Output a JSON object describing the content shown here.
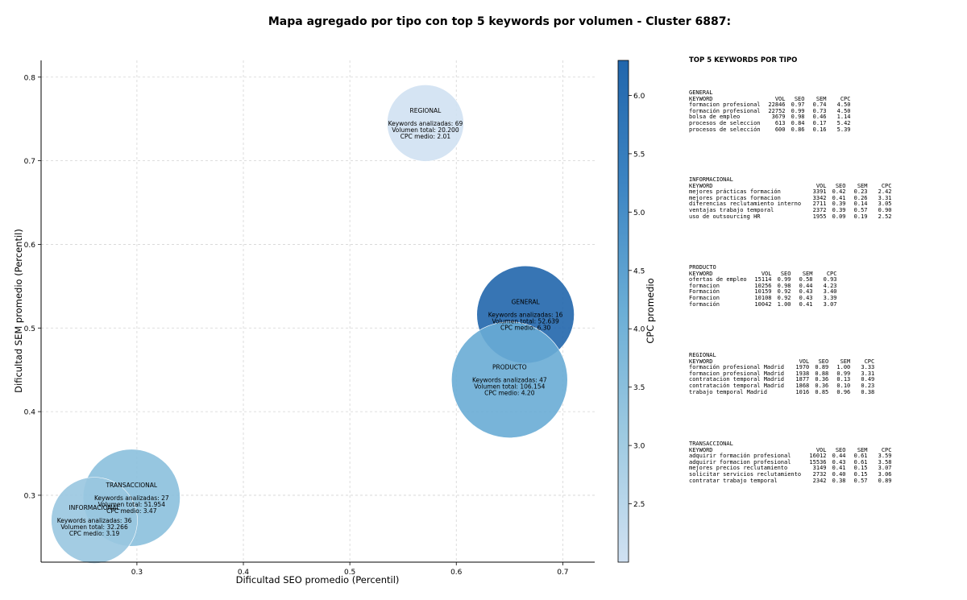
{
  "chart_data": {
    "type": "scatter",
    "title": "Mapa agregado por tipo con top 5 keywords por volumen - Cluster 6887:",
    "xlabel": "Dificultad SEO promedio (Percentil)",
    "ylabel": "Dificultad SEM promedio (Percentil)",
    "xlim": [
      0.21,
      0.73
    ],
    "ylim": [
      0.22,
      0.82
    ],
    "xticks": [
      "0.3",
      "0.4",
      "0.5",
      "0.6",
      "0.7"
    ],
    "yticks": [
      "0.3",
      "0.4",
      "0.5",
      "0.6",
      "0.7",
      "0.8"
    ],
    "grid": true,
    "colorbar": {
      "label": "CPC promedio",
      "min": 2.0,
      "max": 6.3,
      "ticks": [
        "2.5",
        "3.0",
        "3.5",
        "4.0",
        "4.5",
        "5.0",
        "5.5",
        "6.0"
      ],
      "colors": [
        "#d0e1f2",
        "#9ecae1",
        "#6baed6",
        "#3d85c3",
        "#2166ac"
      ]
    },
    "bubbles": [
      {
        "type": "REGIONAL",
        "x": 0.571,
        "y": 0.745,
        "keywords": "Keywords analizadas: 69",
        "volume": "Volumen total: 20.200",
        "cpc": "CPC medio: 2.01",
        "cpc_value": 2.01,
        "volume_value": 20200
      },
      {
        "type": "GENERAL",
        "x": 0.665,
        "y": 0.516,
        "keywords": "Keywords analizadas: 16",
        "volume": "Volumen total: 52.639",
        "cpc": "CPC medio: 6.30",
        "cpc_value": 6.3,
        "volume_value": 52639
      },
      {
        "type": "PRODUCTO",
        "x": 0.65,
        "y": 0.438,
        "keywords": "Keywords analizadas: 47",
        "volume": "Volumen total: 106.154",
        "cpc": "CPC medio: 4.20",
        "cpc_value": 4.2,
        "volume_value": 106154
      },
      {
        "type": "TRANSACCIONAL",
        "x": 0.295,
        "y": 0.297,
        "keywords": "Keywords analizadas: 27",
        "volume": "Volumen total: 51.954",
        "cpc": "CPC medio: 3.47",
        "cpc_value": 3.47,
        "volume_value": 51954
      },
      {
        "type": "INFORMACIONAL",
        "x": 0.26,
        "y": 0.27,
        "keywords": "Keywords analizadas: 36",
        "volume": "Volumen total: 32.266",
        "cpc": "CPC medio: 3.19",
        "cpc_value": 3.19,
        "volume_value": 32266
      }
    ]
  },
  "side_panel": {
    "title": "TOP 5 KEYWORDS POR TIPO",
    "header": {
      "keyword": "KEYWORD",
      "vol": "VOL",
      "seo": "SEO",
      "sem": "SEM",
      "cpc": "CPC"
    },
    "blocks": [
      {
        "name": "GENERAL",
        "rows": [
          [
            "formacion profesional",
            "22846",
            "0.97",
            "0.74",
            "4.50"
          ],
          [
            "formación profesional",
            "22752",
            "0.99",
            "0.73",
            "4.50"
          ],
          [
            "bolsa de empleo",
            "3679",
            "0.98",
            "0.46",
            "1.14"
          ],
          [
            "procesos de seleccion",
            "613",
            "0.84",
            "0.17",
            "5.42"
          ],
          [
            "procesos de selección",
            "600",
            "0.86",
            "0.16",
            "5.39"
          ]
        ]
      },
      {
        "name": "INFORMACIONAL",
        "rows": [
          [
            "mejores prácticas formación",
            "3391",
            "0.42",
            "0.23",
            "2.42"
          ],
          [
            "mejores practicas formacion",
            "3342",
            "0.41",
            "0.26",
            "3.31"
          ],
          [
            "diferencias reclutamiento interno",
            "2711",
            "0.39",
            "0.14",
            "3.05"
          ],
          [
            "ventajas trabajo temporal",
            "2372",
            "0.39",
            "0.57",
            "0.90"
          ],
          [
            "uso de outsourcing HR",
            "1955",
            "0.09",
            "0.19",
            "2.52"
          ]
        ]
      },
      {
        "name": "PRODUCTO",
        "rows": [
          [
            "ofertas de empleo",
            "15114",
            "0.99",
            "0.58",
            "0.93"
          ],
          [
            "formacion",
            "10256",
            "0.98",
            "0.44",
            "4.23"
          ],
          [
            "Formación",
            "10159",
            "0.92",
            "0.43",
            "3.40"
          ],
          [
            "Formacion",
            "10108",
            "0.92",
            "0.43",
            "3.39"
          ],
          [
            "formación",
            "10042",
            "1.00",
            "0.41",
            "3.07"
          ]
        ]
      },
      {
        "name": "REGIONAL",
        "rows": [
          [
            "formación profesional Madrid",
            "1970",
            "0.89",
            "1.00",
            "3.33"
          ],
          [
            "formacion profesional Madrid",
            "1938",
            "0.88",
            "0.99",
            "3.31"
          ],
          [
            "contratacion temporal Madrid",
            "1877",
            "0.36",
            "0.13",
            "0.49"
          ],
          [
            "contratación temporal Madrid",
            "1868",
            "0.36",
            "0.10",
            "0.23"
          ],
          [
            "trabajo temporal Madrid",
            "1016",
            "0.85",
            "0.96",
            "0.38"
          ]
        ]
      },
      {
        "name": "TRANSACCIONAL",
        "rows": [
          [
            "adquirir formación profesional",
            "16012",
            "0.44",
            "0.61",
            "3.59"
          ],
          [
            "adquirir formacion profesional",
            "15536",
            "0.43",
            "0.61",
            "3.58"
          ],
          [
            "mejores precios reclutamiento",
            "3149",
            "0.41",
            "0.15",
            "3.07"
          ],
          [
            "solicitar servicios reclutamiento",
            "2732",
            "0.40",
            "0.15",
            "3.06"
          ],
          [
            "contratar trabajo temporal",
            "2342",
            "0.38",
            "0.57",
            "0.89"
          ]
        ]
      }
    ]
  }
}
